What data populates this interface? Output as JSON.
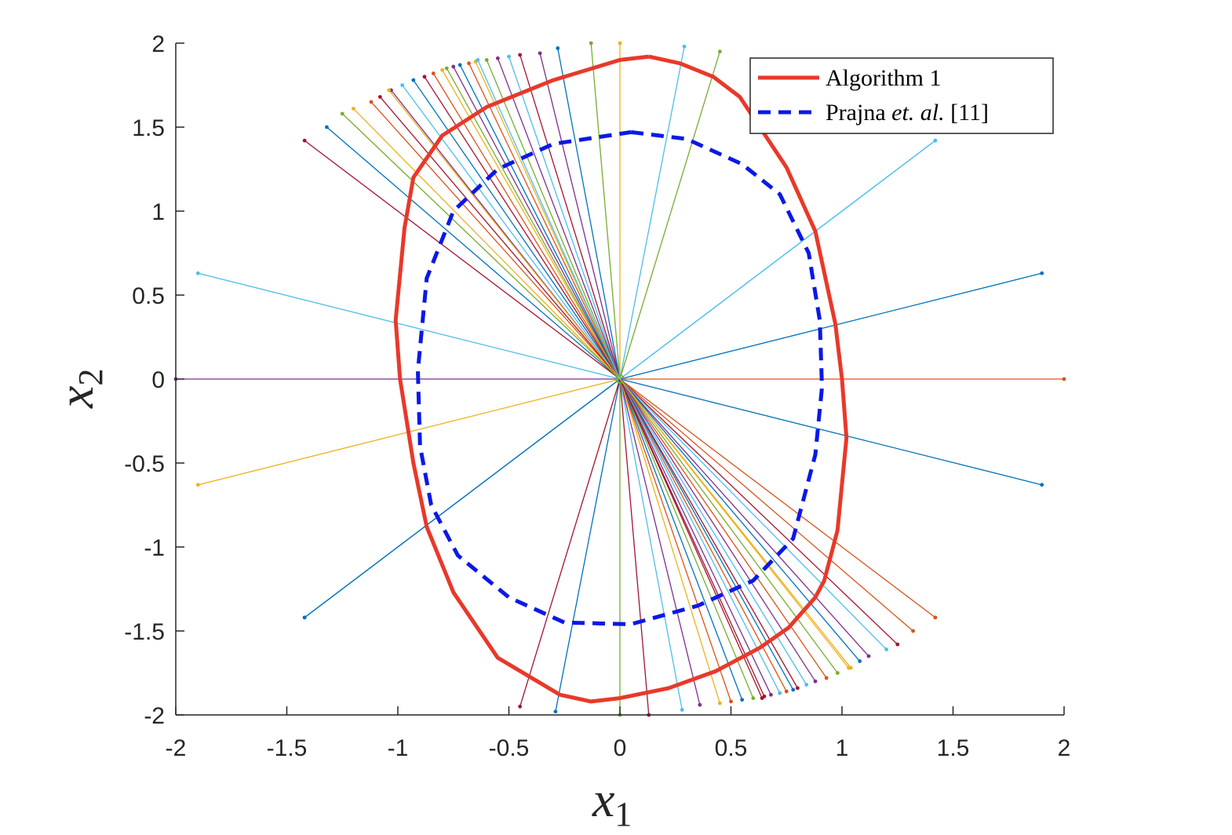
{
  "chart_data": {
    "type": "line",
    "xlabel": {
      "main": "x",
      "sub": "1"
    },
    "ylabel": {
      "main": "x",
      "sub": "2"
    },
    "xlim": [
      -2,
      2
    ],
    "ylim": [
      -2,
      2
    ],
    "grid": false,
    "legend_position": "top-right",
    "x_ticks": [
      "-2",
      "-1.5",
      "-1",
      "-0.5",
      "0",
      "0.5",
      "1",
      "1.5",
      "2"
    ],
    "y_ticks": [
      "2",
      "1.5",
      "1",
      "0.5",
      "0",
      "-0.5",
      "-1",
      "-1.5",
      "-2"
    ],
    "series": [
      {
        "name": "Algorithm 1",
        "color": "#e8392a",
        "style": "solid",
        "x": [
          0.13,
          0.27,
          0.42,
          0.54,
          0.75,
          0.88,
          0.97,
          1.0,
          1.02,
          0.98,
          0.92,
          0.88,
          0.76,
          0.63,
          0.43,
          0.22,
          0.0,
          -0.13,
          -0.27,
          -0.55,
          -0.75,
          -0.87,
          -0.93,
          -0.99,
          -1.01,
          -0.97,
          -0.93,
          -0.8,
          -0.6,
          -0.3,
          0.0,
          0.13
        ],
        "y": [
          1.92,
          1.88,
          1.8,
          1.68,
          1.26,
          0.88,
          0.33,
          0.0,
          -0.35,
          -0.9,
          -1.2,
          -1.3,
          -1.48,
          -1.6,
          -1.74,
          -1.84,
          -1.9,
          -1.92,
          -1.88,
          -1.66,
          -1.27,
          -0.88,
          -0.5,
          0.0,
          0.35,
          0.9,
          1.2,
          1.45,
          1.62,
          1.78,
          1.9,
          1.92
        ]
      },
      {
        "name": "Prajna et. al. [11]",
        "color": "#0a19e6",
        "style": "dashed",
        "x": [
          0.05,
          0.3,
          0.55,
          0.72,
          0.85,
          0.9,
          0.91,
          0.88,
          0.78,
          0.6,
          0.35,
          0.05,
          -0.25,
          -0.5,
          -0.73,
          -0.85,
          -0.9,
          -0.91,
          -0.87,
          -0.75,
          -0.55,
          -0.3,
          0.05
        ],
        "y": [
          1.47,
          1.43,
          1.28,
          1.1,
          0.75,
          0.35,
          -0.05,
          -0.45,
          -0.95,
          -1.2,
          -1.35,
          -1.46,
          -1.45,
          -1.3,
          -1.05,
          -0.75,
          -0.4,
          0.05,
          0.6,
          1.0,
          1.25,
          1.4,
          1.47
        ]
      }
    ],
    "trajectory_endpoints": {
      "x": [
        -2.0,
        2.0,
        -1.9,
        1.9,
        -1.9,
        1.9,
        -1.42,
        1.42,
        -1.42,
        1.42,
        -1.32,
        1.32,
        -1.25,
        1.25,
        -1.2,
        1.2,
        -1.12,
        1.12,
        -1.08,
        1.08,
        -1.03,
        1.03,
        -0.98,
        0.98,
        -0.93,
        0.93,
        -0.88,
        0.88,
        -0.84,
        0.84,
        -0.8,
        0.8,
        -0.78,
        0.78,
        -0.75,
        0.75,
        -0.72,
        0.72,
        -0.68,
        0.68,
        -0.65,
        0.65,
        -0.6,
        0.6,
        -0.55,
        0.55,
        -0.5,
        0.5,
        -0.45,
        0.45,
        -0.36,
        0.36,
        -0.28,
        0.28,
        -0.13,
        0.13,
        0.0,
        0.0,
        0.29,
        -0.29,
        0.45,
        -0.45,
        1.42,
        -1.42,
        0.64,
        -0.64,
        1.04,
        -1.04
      ],
      "y": [
        0.0,
        0.0,
        0.63,
        -0.63,
        -0.63,
        0.63,
        1.42,
        -1.42,
        -1.42,
        1.42,
        1.5,
        -1.5,
        1.58,
        -1.58,
        1.61,
        -1.61,
        1.65,
        -1.65,
        1.68,
        -1.68,
        1.72,
        -1.72,
        1.75,
        -1.75,
        1.78,
        -1.78,
        1.8,
        -1.8,
        1.82,
        -1.82,
        1.84,
        -1.84,
        1.85,
        -1.85,
        1.86,
        -1.86,
        1.87,
        -1.87,
        1.88,
        -1.88,
        1.89,
        -1.89,
        1.9,
        -1.9,
        1.91,
        -1.91,
        1.92,
        -1.92,
        1.93,
        -1.93,
        1.94,
        -1.94,
        1.97,
        -1.97,
        2.0,
        -2.0,
        2.0,
        -2.0,
        1.98,
        -1.98,
        1.95,
        -1.95,
        1.42,
        -1.42,
        -1.9,
        1.9,
        -1.72,
        1.72
      ],
      "colors": [
        "#7e2f8e",
        "#d95319",
        "#4dbeee",
        "#0072bd",
        "#edb120",
        "#0072bd",
        "#a2142f",
        "#d95319",
        "#0072bd",
        "#4dbeee",
        "#0072bd",
        "#d95319",
        "#77ac30",
        "#a2142f",
        "#edb120",
        "#4dbeee",
        "#d95319",
        "#7e2f8e",
        "#a2142f",
        "#0072bd",
        "#7e2f8e",
        "#edb120",
        "#4dbeee",
        "#77ac30",
        "#0072bd",
        "#d95319",
        "#a2142f",
        "#7e2f8e",
        "#d95319",
        "#4dbeee",
        "#edb120",
        "#a2142f",
        "#77ac30",
        "#0072bd",
        "#7e2f8e",
        "#d95319",
        "#0072bd",
        "#4dbeee",
        "#d95319",
        "#7e2f8e",
        "#edb120",
        "#a2142f",
        "#77ac30",
        "#77ac30",
        "#7e2f8e",
        "#0072bd",
        "#4dbeee",
        "#d95319",
        "#a2142f",
        "#edb120",
        "#7e2f8e",
        "#7e2f8e",
        "#0072bd",
        "#4dbeee",
        "#77ac30",
        "#a2142f",
        "#edb120",
        "#77ac30",
        "#4dbeee",
        "#0072bd",
        "#77ac30",
        "#a2142f",
        "#4dbeee",
        "#0072bd",
        "#a2142f",
        "#4dbeee",
        "#edb120",
        "#edb120"
      ]
    }
  }
}
